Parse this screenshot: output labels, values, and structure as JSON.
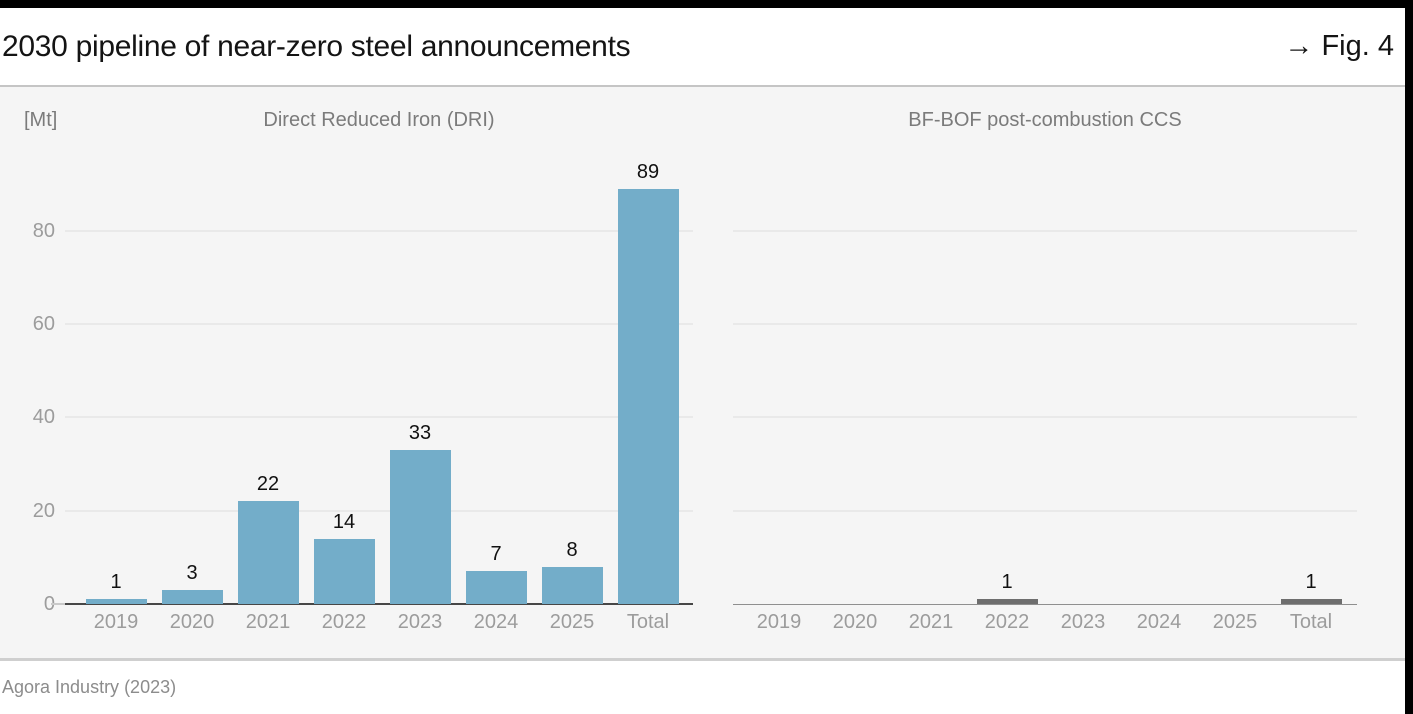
{
  "header": {
    "title": "2030 pipeline of near-zero steel announcements",
    "fig_label": "→ Fig. 4"
  },
  "footer": {
    "source": "Agora Industry (2023)"
  },
  "chart_data": {
    "type": "bar",
    "title": "2030 pipeline of near-zero steel announcements",
    "unit_label": "[Mt]",
    "categories": [
      "2019",
      "2020",
      "2021",
      "2022",
      "2023",
      "2024",
      "2025",
      "Total"
    ],
    "y_ticks": [
      0,
      20,
      40,
      60,
      80
    ],
    "ylim": [
      0,
      95
    ],
    "grid": true,
    "legend": "none",
    "panels": [
      {
        "title": "Direct Reduced Iron (DRI)",
        "values": [
          1,
          3,
          22,
          14,
          33,
          7,
          8,
          89
        ],
        "bar_color": "#73adc9",
        "y_axis_labels": true,
        "axis_style": "strong"
      },
      {
        "title": "BF-BOF post-combustion CCS",
        "values": [
          0,
          0,
          0,
          1,
          0,
          0,
          0,
          1
        ],
        "bar_color": "#6e6e6e",
        "y_axis_labels": false,
        "axis_style": "light"
      }
    ]
  },
  "style": {
    "accent_black": "#000000",
    "band_bg": "#f5f5f5",
    "grid_color": "#e9e9e9",
    "axis_strong": "#474747",
    "axis_light": "#8f8f8f",
    "tick_gray": "#9c9c9c",
    "title_gray": "#7b7b7b",
    "text_black": "#141414",
    "source_gray": "#8c8c8c"
  }
}
